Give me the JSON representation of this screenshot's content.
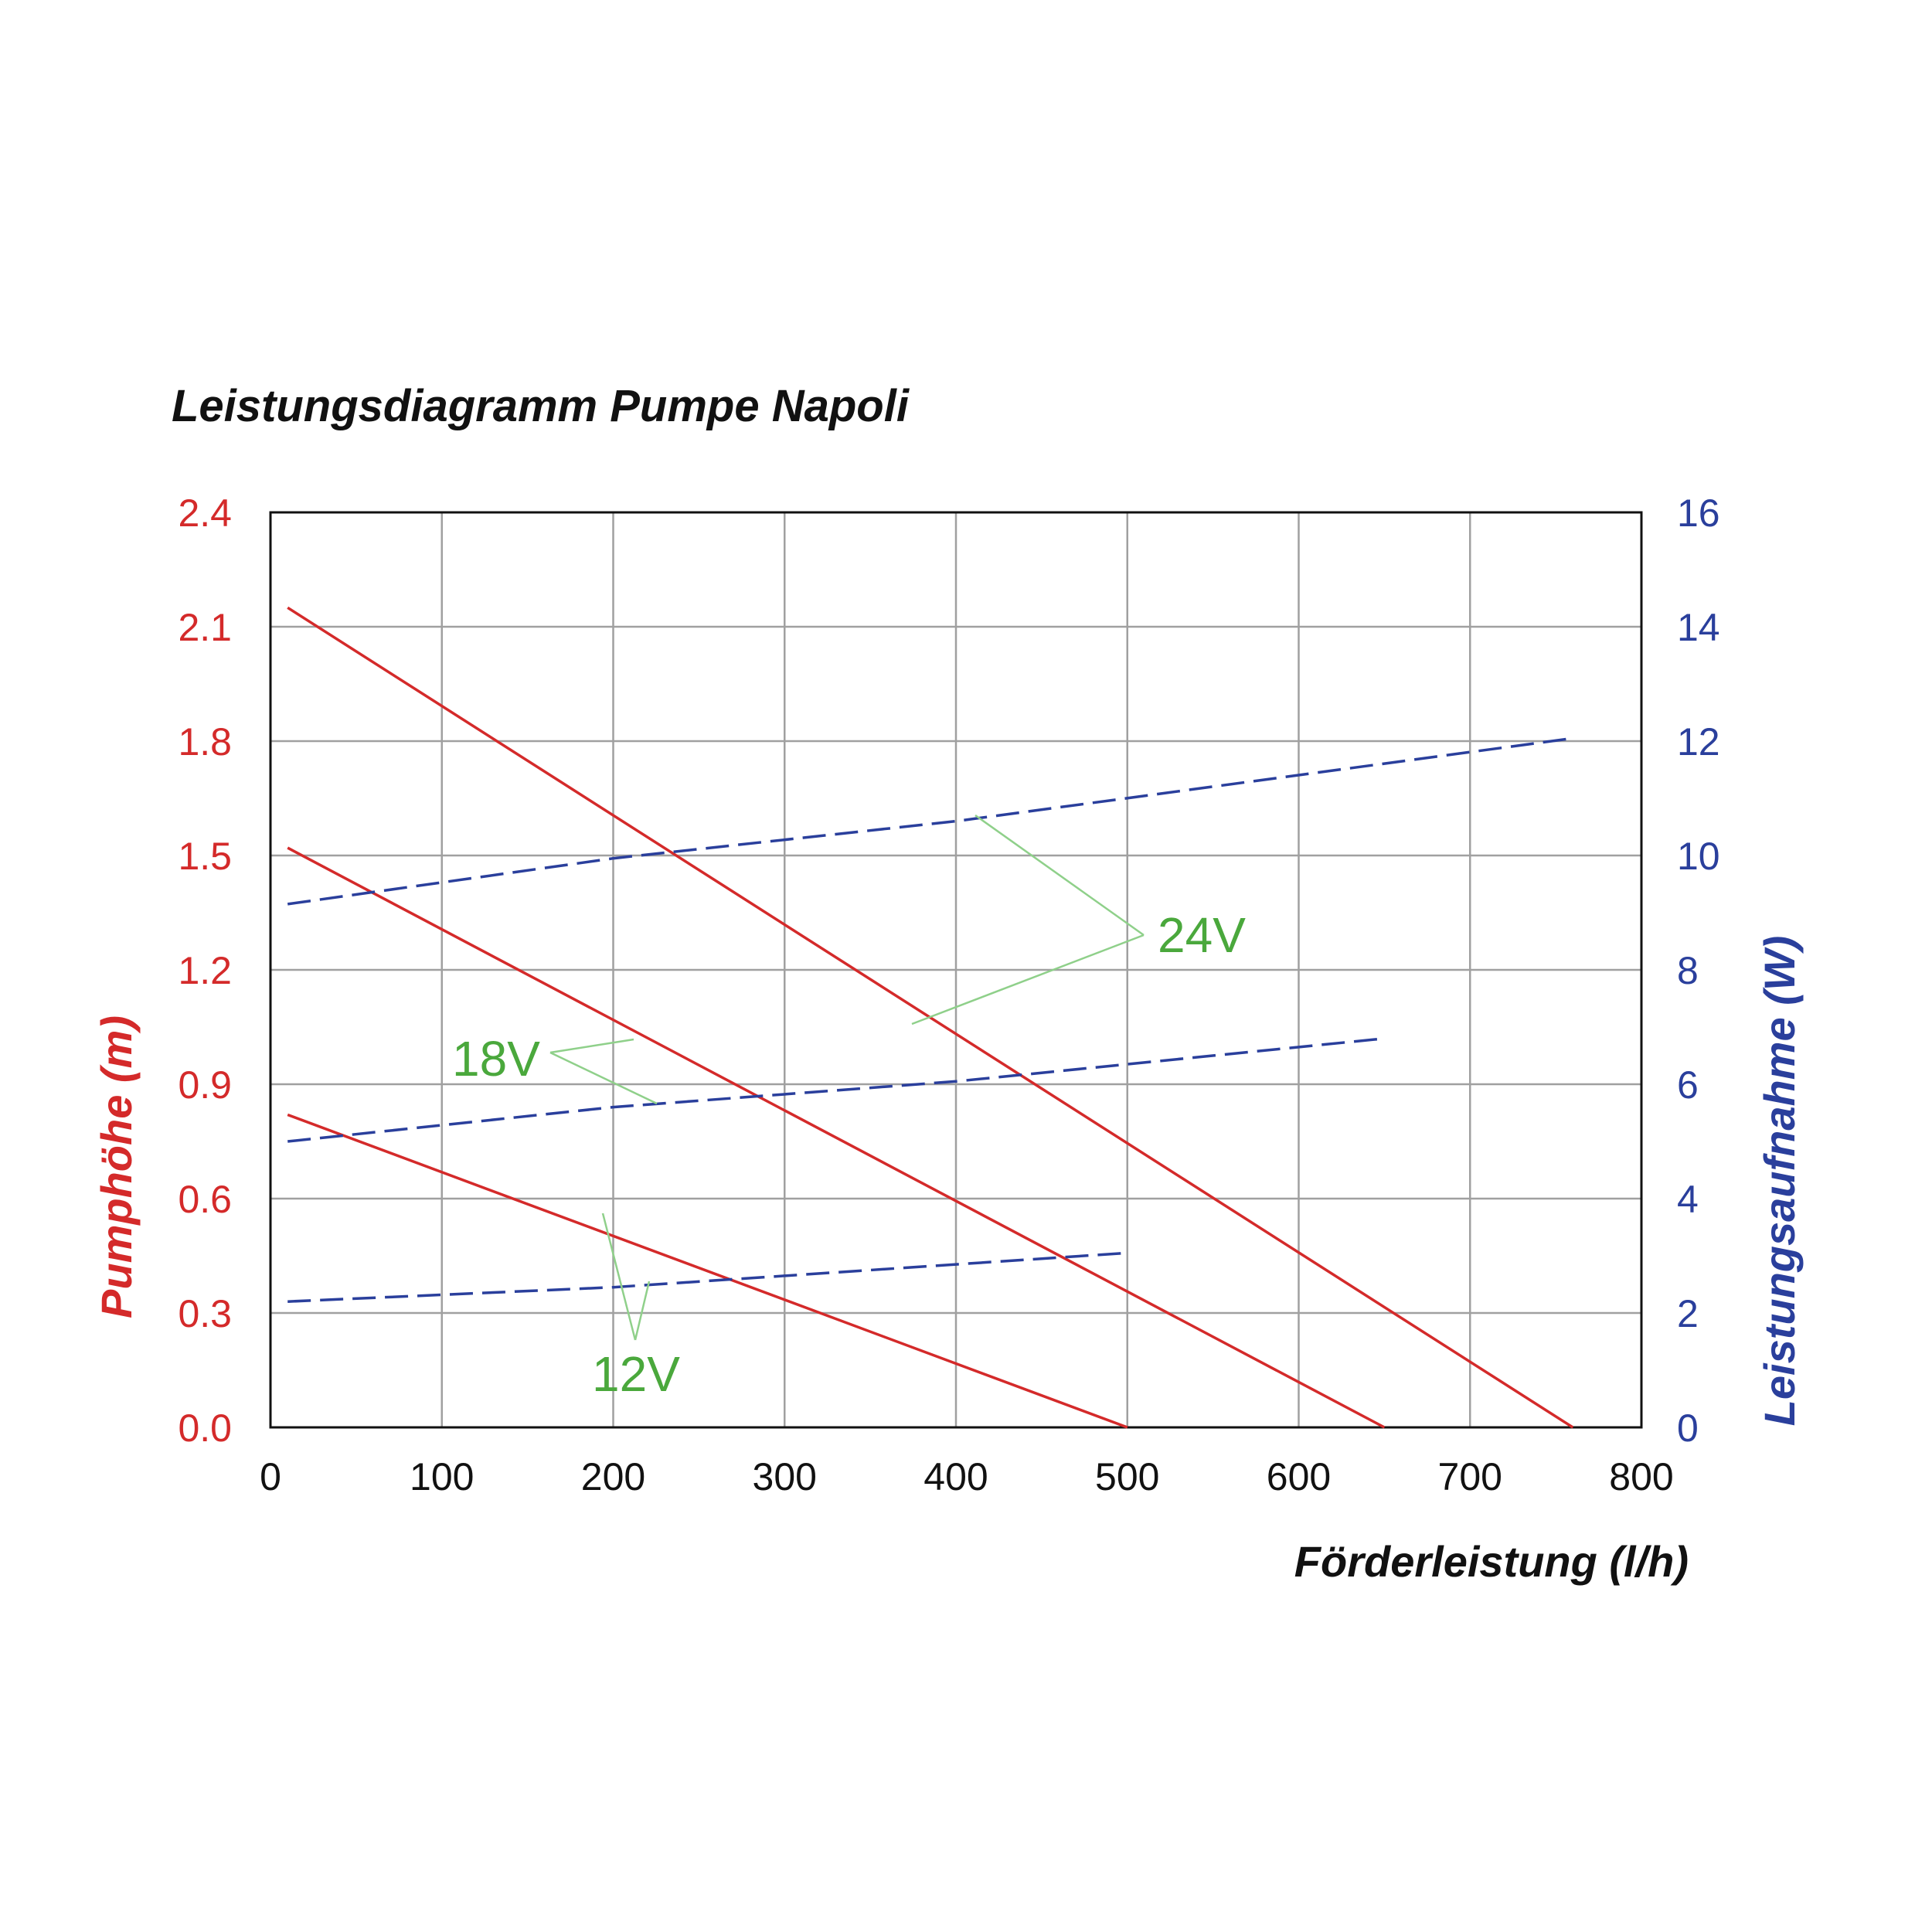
{
  "chart_data": {
    "type": "line",
    "title": "Leistungsdiagramm Pumpe Napoli",
    "xlabel": "Förderleistung (l/h)",
    "ylabel": "Pumphöhe (m)",
    "y2label": "Leistungsaufnahme (W)",
    "xlim": [
      0,
      800
    ],
    "ylim": [
      0,
      2.4
    ],
    "y2lim": [
      0,
      16
    ],
    "x_ticks": [
      "0",
      "100",
      "200",
      "300",
      "400",
      "500",
      "600",
      "700",
      "800"
    ],
    "y_ticks": [
      "0.0",
      "0.3",
      "0.6",
      "0.9",
      "1.2",
      "1.5",
      "1.8",
      "2.1",
      "2.4"
    ],
    "y2_ticks": [
      "0",
      "2",
      "4",
      "6",
      "8",
      "10",
      "12",
      "14",
      "16"
    ],
    "grid": true,
    "colors": {
      "head": "#d42a2a",
      "power": "#2a3f9c",
      "annotation": "#4aa83c",
      "grid": "#a0a0a0"
    },
    "series": [
      {
        "axis": "left",
        "style": "solid",
        "x": [
          10,
          760
        ],
        "y": [
          2.15,
          0.0
        ]
      },
      {
        "axis": "left",
        "style": "solid",
        "x": [
          10,
          650
        ],
        "y": [
          1.52,
          0.0
        ]
      },
      {
        "axis": "left",
        "style": "solid",
        "x": [
          10,
          500
        ],
        "y": [
          0.82,
          0.0
        ]
      },
      {
        "axis": "right",
        "style": "dashed",
        "x": [
          10,
          200,
          400,
          760
        ],
        "y": [
          9.15,
          9.95,
          10.6,
          12.05
        ]
      },
      {
        "axis": "right",
        "style": "dashed",
        "x": [
          10,
          200,
          400,
          650
        ],
        "y": [
          5.0,
          5.6,
          6.05,
          6.8
        ]
      },
      {
        "axis": "right",
        "style": "dashed",
        "x": [
          10,
          200,
          400,
          500
        ],
        "y": [
          2.2,
          2.45,
          2.85,
          3.05
        ]
      }
    ],
    "annotations": [
      {
        "label": "24V"
      },
      {
        "label": "18V"
      },
      {
        "label": "12V"
      }
    ]
  }
}
